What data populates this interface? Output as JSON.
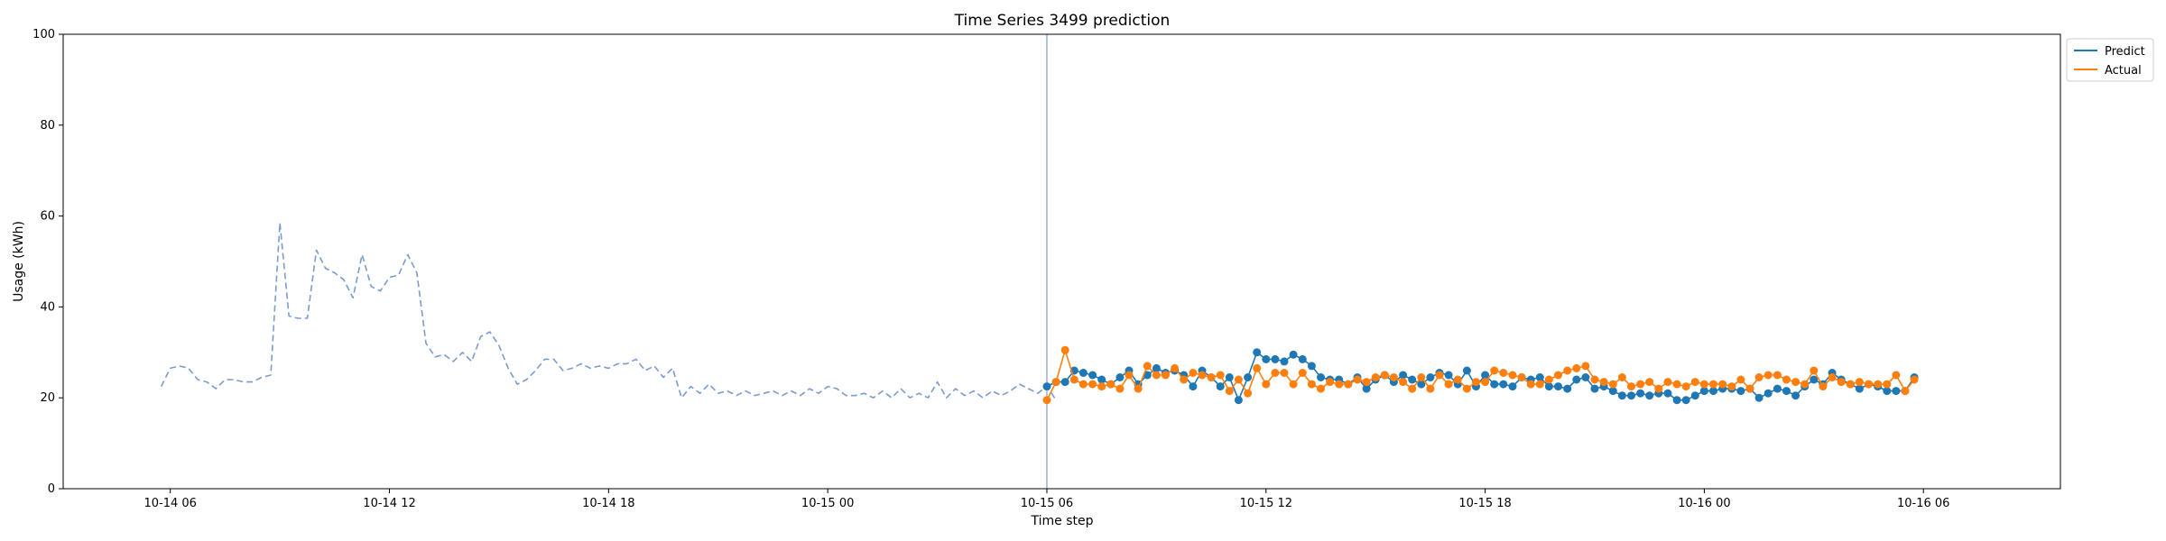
{
  "chart_data": {
    "type": "line",
    "title": "Time Series 3499 prediction",
    "xlabel": "Time step",
    "ylabel": "Usage (kWh)",
    "ylim": [
      0,
      100
    ],
    "yticks": [
      0,
      20,
      40,
      60,
      80,
      100
    ],
    "xlim": [
      "2023-10-14T03:04",
      "2023-10-16T09:45"
    ],
    "xticks": [
      {
        "t": "2023-10-14T06:00",
        "label": "10-14 06"
      },
      {
        "t": "2023-10-14T12:00",
        "label": "10-14 12"
      },
      {
        "t": "2023-10-14T18:00",
        "label": "10-14 18"
      },
      {
        "t": "2023-10-15T00:00",
        "label": "10-15 00"
      },
      {
        "t": "2023-10-15T06:00",
        "label": "10-15 06"
      },
      {
        "t": "2023-10-15T12:00",
        "label": "10-15 12"
      },
      {
        "t": "2023-10-15T18:00",
        "label": "10-15 18"
      },
      {
        "t": "2023-10-16T00:00",
        "label": "10-16 00"
      },
      {
        "t": "2023-10-16T06:00",
        "label": "10-16 06"
      }
    ],
    "step_minutes": 15,
    "vline": "2023-10-15T06:00",
    "grid": false,
    "legend_position": "upper right, outside plot",
    "series": [
      {
        "name": "",
        "style": "dashed",
        "color": "#7b9ccf",
        "start": "2023-10-14T05:45",
        "values": [
          22.5,
          26.5,
          27.0,
          26.5,
          24.0,
          23.5,
          22.0,
          24.0,
          24.0,
          23.5,
          23.5,
          24.5,
          25.0,
          58.5,
          38.0,
          37.5,
          37.5,
          52.5,
          48.5,
          47.5,
          46.0,
          42.0,
          51.5,
          44.5,
          43.5,
          46.5,
          47.0,
          51.5,
          47.5,
          32.0,
          29.0,
          29.5,
          28.0,
          30.0,
          28.0,
          33.5,
          34.5,
          31.5,
          26.5,
          23.0,
          24.0,
          26.0,
          28.5,
          28.5,
          26.0,
          26.5,
          27.5,
          26.5,
          27.0,
          26.5,
          27.5,
          27.5,
          28.5,
          26.0,
          27.0,
          24.5,
          26.5,
          20.0,
          22.5,
          21.0,
          23.0,
          21.0,
          21.5,
          20.5,
          21.5,
          20.5,
          21.0,
          21.5,
          20.5,
          21.5,
          20.5,
          22.0,
          21.0,
          22.5,
          22.0,
          20.5,
          20.5,
          21.0,
          20.0,
          21.5,
          20.0,
          22.0,
          20.0,
          21.0,
          20.0,
          23.5,
          20.0,
          22.0,
          20.5,
          21.5,
          20.0,
          21.5,
          20.5,
          21.5,
          23.0,
          22.0,
          21.0,
          22.5,
          19.5
        ]
      },
      {
        "name": "Predict",
        "style": "solid-markers",
        "color": "#1f77b4",
        "start": "2023-10-15T06:00",
        "values": [
          22.5,
          23.5,
          23.5,
          26.0,
          25.5,
          25.0,
          24.0,
          23.0,
          24.5,
          26.0,
          23.0,
          25.0,
          26.5,
          25.5,
          26.0,
          25.0,
          22.5,
          26.0,
          24.5,
          22.5,
          24.5,
          19.5,
          24.5,
          30.0,
          28.5,
          28.5,
          28.0,
          29.5,
          28.5,
          27.0,
          24.5,
          24.0,
          24.0,
          23.0,
          24.5,
          22.0,
          24.0,
          25.0,
          23.5,
          25.0,
          24.0,
          23.0,
          24.5,
          25.5,
          25.0,
          23.0,
          26.0,
          22.5,
          25.0,
          23.0,
          23.0,
          22.5,
          24.5,
          24.0,
          24.5,
          22.5,
          22.5,
          22.0,
          24.0,
          24.5,
          22.0,
          22.5,
          21.5,
          20.5,
          20.5,
          21.0,
          20.5,
          21.0,
          21.0,
          19.5,
          19.5,
          20.5,
          21.5,
          21.5,
          22.0,
          22.0,
          21.5,
          22.0,
          20.0,
          21.0,
          22.0,
          21.5,
          20.5,
          22.5,
          24.0,
          23.0,
          25.5,
          24.0,
          23.0,
          22.0,
          23.0,
          22.5,
          21.5,
          21.5,
          21.5,
          24.5
        ]
      },
      {
        "name": "Actual",
        "style": "solid-markers",
        "color": "#ff7f0e",
        "start": "2023-10-15T06:00",
        "values": [
          19.5,
          23.5,
          30.5,
          24.0,
          23.0,
          23.0,
          22.5,
          23.0,
          22.0,
          25.0,
          22.0,
          27.0,
          25.0,
          25.0,
          26.5,
          24.0,
          25.5,
          25.0,
          24.5,
          25.0,
          21.5,
          24.0,
          21.0,
          26.5,
          23.0,
          25.5,
          25.5,
          23.0,
          25.5,
          23.0,
          22.0,
          23.5,
          23.0,
          23.0,
          24.0,
          23.5,
          24.5,
          25.0,
          24.5,
          23.5,
          22.0,
          24.5,
          22.0,
          25.0,
          23.0,
          24.0,
          22.0,
          23.5,
          23.5,
          26.0,
          25.5,
          25.0,
          24.5,
          23.0,
          23.0,
          24.0,
          25.0,
          26.0,
          26.5,
          27.0,
          24.0,
          23.5,
          23.0,
          24.5,
          22.5,
          23.0,
          23.5,
          22.0,
          23.5,
          23.0,
          22.5,
          23.5,
          23.0,
          23.0,
          23.0,
          22.5,
          24.0,
          22.0,
          24.5,
          25.0,
          25.0,
          24.0,
          23.5,
          23.0,
          26.0,
          22.5,
          24.5,
          23.5,
          23.0,
          23.5,
          23.0,
          23.0,
          23.0,
          25.0,
          21.5,
          24.0
        ]
      }
    ]
  }
}
